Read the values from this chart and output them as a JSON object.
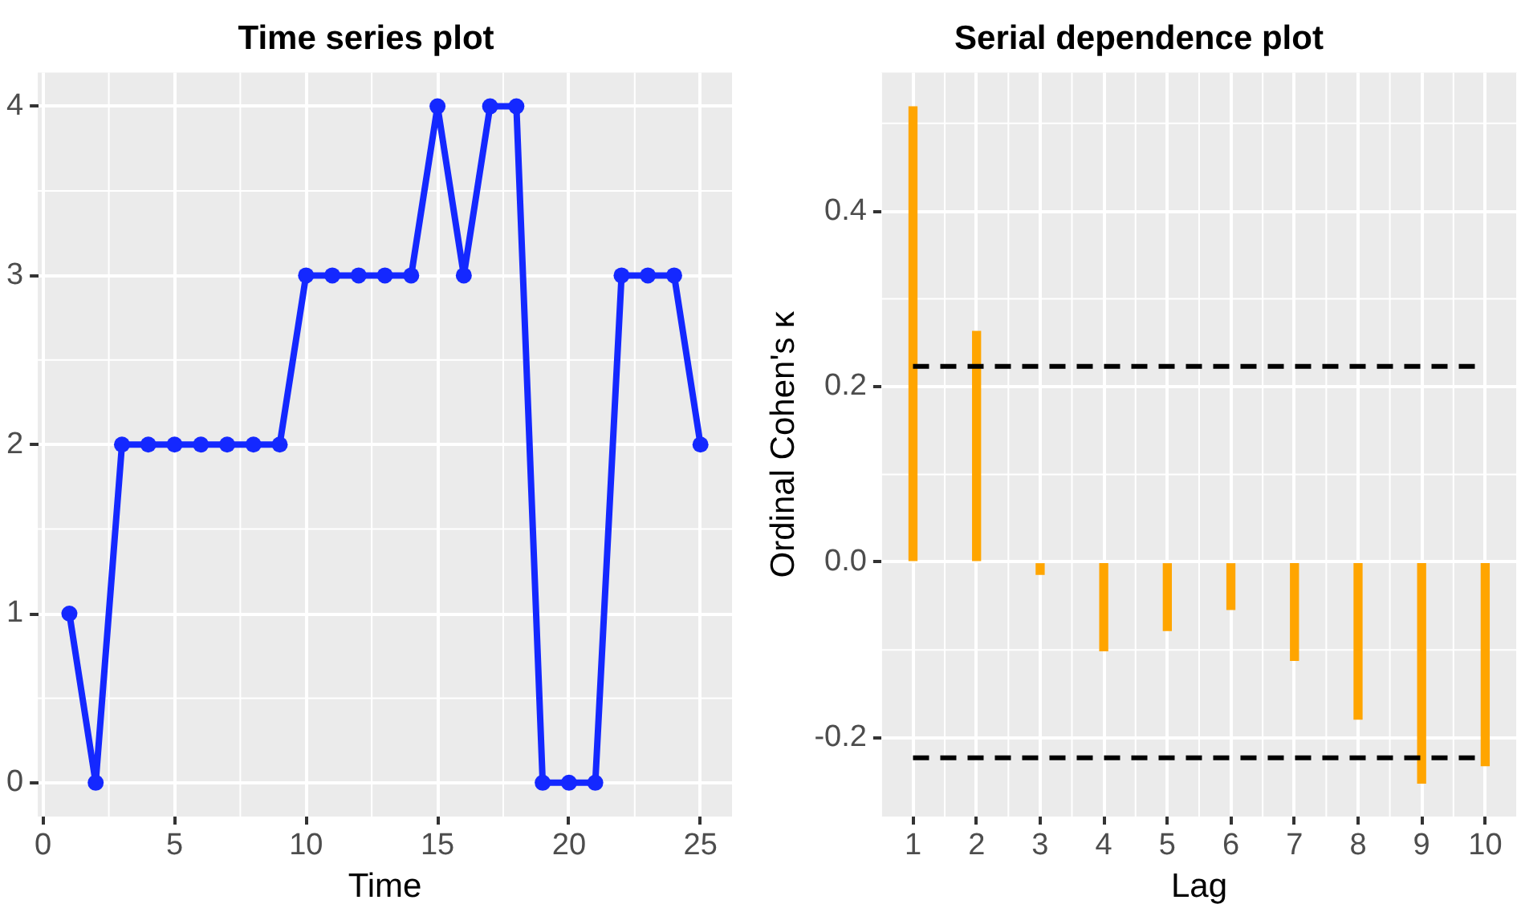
{
  "chart_data": [
    {
      "type": "line",
      "title": "Time series plot",
      "xlabel": "Time",
      "x": [
        1,
        2,
        3,
        4,
        5,
        6,
        7,
        8,
        9,
        10,
        11,
        12,
        13,
        14,
        15,
        16,
        17,
        18,
        19,
        20,
        21,
        22,
        23,
        24,
        25
      ],
      "series": [
        {
          "color": "#1428ff",
          "values": [
            1,
            0,
            2,
            2,
            2,
            2,
            2,
            2,
            2,
            3,
            3,
            3,
            3,
            3,
            4,
            3,
            4,
            4,
            0,
            0,
            0,
            3,
            3,
            3,
            2
          ]
        }
      ],
      "xlim": [
        -0.2,
        26.2
      ],
      "xticks": [
        0,
        5,
        10,
        15,
        20,
        25
      ],
      "ylim": [
        -0.2,
        4.2
      ],
      "yticks": [
        0,
        1,
        2,
        3,
        4
      ],
      "grid": true,
      "legend": false,
      "marker": "circle",
      "line_style": "solid"
    },
    {
      "type": "bar",
      "title": "Serial dependence plot",
      "xlabel": "Lag",
      "ylabel": "Ordinal Cohen's κ",
      "categories": [
        "1",
        "2",
        "3",
        "4",
        "5",
        "6",
        "7",
        "8",
        "9",
        "10"
      ],
      "series": [
        {
          "color": "#ffa500",
          "values": [
            0.519,
            0.263,
            -0.014,
            -0.101,
            -0.078,
            -0.054,
            -0.112,
            -0.179,
            -0.252,
            -0.232
          ]
        }
      ],
      "ylim": [
        -0.29,
        0.558
      ],
      "yticks": [
        -0.2,
        {
          "value": 0,
          "label": "0.0"
        },
        0.2,
        0.4
      ],
      "ref_lines": [
        {
          "axis": "y",
          "value": 0.223,
          "color": "#000000",
          "line_style": "dashed"
        },
        {
          "axis": "y",
          "value": -0.223,
          "color": "#000000",
          "line_style": "dashed"
        }
      ],
      "grid": true,
      "legend": false
    }
  ]
}
